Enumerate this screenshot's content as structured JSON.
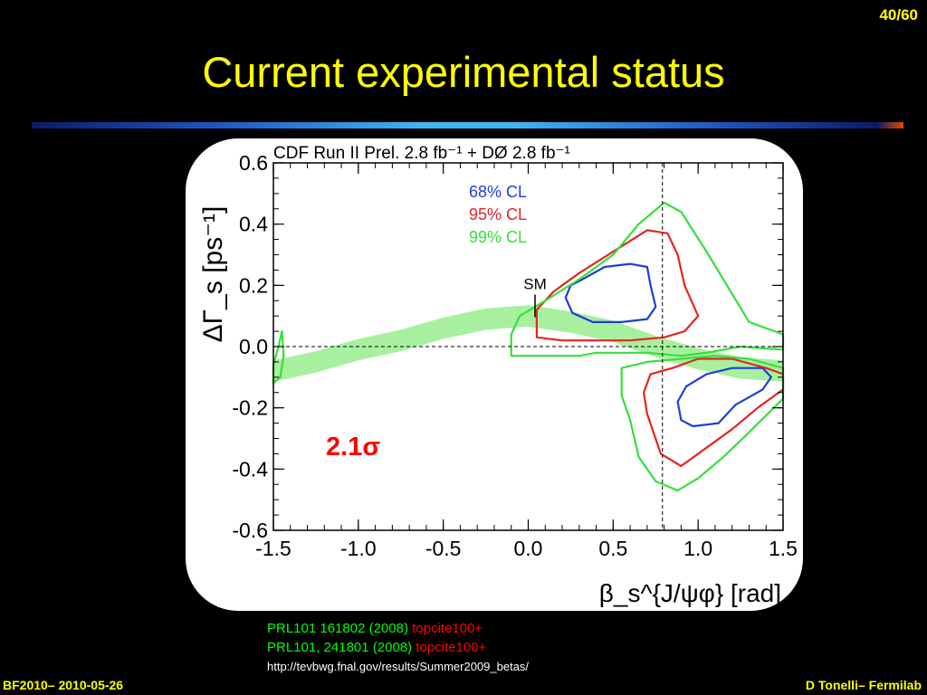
{
  "slide": {
    "page_number": "40/60",
    "title": "Current experimental status",
    "footer_left": "BF2010– 2010-05-26",
    "footer_right": "D Tonelli– Fermilab",
    "references": [
      {
        "text": "PRL101 161802 (2008) ",
        "cite": "topcite100+"
      },
      {
        "text": "PRL101, 241801 (2008) ",
        "cite": "topcite100+"
      }
    ],
    "url": "http://tevbwg.fnal.gov/results/Summer2009_betas/",
    "significance": "2.1σ"
  },
  "colors": {
    "title": "#ffff00",
    "blue": "#1d3fd6",
    "red": "#e42522",
    "green": "#36e03a",
    "band": "#a8f0a0",
    "annotation": "#ff0000"
  },
  "chart_data": {
    "type": "contour",
    "header": "CDF  Run II Prel. 2.8 fb⁻¹ + DØ  2.8 fb⁻¹",
    "xlabel": "β_s^{J/ψφ} [rad]",
    "ylabel": "ΔΓ_s [ps⁻¹]",
    "xlim": [
      -1.5,
      1.5
    ],
    "ylim": [
      -0.6,
      0.6
    ],
    "x_ticks": [
      "-1.5",
      "-1.0",
      "-0.5",
      "0.0",
      "0.5",
      "1.0",
      "1.5"
    ],
    "y_ticks": [
      "0.6",
      "0.4",
      "0.2",
      "0.0",
      "-0.2",
      "-0.4",
      "-0.6"
    ],
    "reference_lines": {
      "x": 0.79,
      "y": 0.0
    },
    "sm_label": "SM",
    "sm_point": [
      0.04,
      0.09
    ],
    "legend": [
      {
        "name": "68% CL",
        "color": "#1d3fd6"
      },
      {
        "name": "95% CL",
        "color": "#e42522"
      },
      {
        "name": "99% CL",
        "color": "#36e03a"
      }
    ],
    "contours": [
      {
        "level": "68% CL",
        "region": "upper",
        "points": [
          [
            0.25,
            0.2
          ],
          [
            0.32,
            0.22
          ],
          [
            0.45,
            0.26
          ],
          [
            0.6,
            0.27
          ],
          [
            0.7,
            0.26
          ],
          [
            0.72,
            0.2
          ],
          [
            0.75,
            0.13
          ],
          [
            0.7,
            0.09
          ],
          [
            0.55,
            0.08
          ],
          [
            0.38,
            0.08
          ],
          [
            0.26,
            0.11
          ],
          [
            0.22,
            0.16
          ]
        ]
      },
      {
        "level": "68% CL",
        "region": "lower",
        "points": [
          [
            0.93,
            -0.13
          ],
          [
            1.05,
            -0.09
          ],
          [
            1.2,
            -0.07
          ],
          [
            1.38,
            -0.07
          ],
          [
            1.43,
            -0.1
          ],
          [
            1.38,
            -0.14
          ],
          [
            1.22,
            -0.19
          ],
          [
            1.12,
            -0.25
          ],
          [
            0.97,
            -0.26
          ],
          [
            0.9,
            -0.24
          ],
          [
            0.88,
            -0.18
          ]
        ]
      },
      {
        "level": "95% CL",
        "region": "upper",
        "points": [
          [
            0.05,
            0.12
          ],
          [
            0.15,
            0.18
          ],
          [
            0.3,
            0.24
          ],
          [
            0.5,
            0.31
          ],
          [
            0.7,
            0.38
          ],
          [
            0.82,
            0.37
          ],
          [
            0.88,
            0.3
          ],
          [
            0.92,
            0.2
          ],
          [
            1.0,
            0.1
          ],
          [
            0.92,
            0.05
          ],
          [
            0.8,
            0.03
          ],
          [
            0.6,
            0.02
          ],
          [
            0.4,
            0.02
          ],
          [
            0.2,
            0.02
          ],
          [
            0.05,
            0.03
          ]
        ]
      },
      {
        "level": "95% CL",
        "region": "lower",
        "points": [
          [
            0.72,
            -0.09
          ],
          [
            0.85,
            -0.07
          ],
          [
            1.0,
            -0.04
          ],
          [
            1.2,
            -0.04
          ],
          [
            1.4,
            -0.07
          ],
          [
            1.5,
            -0.09
          ],
          [
            1.5,
            -0.14
          ],
          [
            1.35,
            -0.2
          ],
          [
            1.2,
            -0.27
          ],
          [
            1.05,
            -0.33
          ],
          [
            0.9,
            -0.39
          ],
          [
            0.78,
            -0.35
          ],
          [
            0.7,
            -0.22
          ],
          [
            0.68,
            -0.15
          ]
        ]
      },
      {
        "level": "99% CL",
        "region": "upper",
        "points": [
          [
            -0.1,
            0.04
          ],
          [
            -0.05,
            0.1
          ],
          [
            0.1,
            0.15
          ],
          [
            0.3,
            0.22
          ],
          [
            0.5,
            0.3
          ],
          [
            0.65,
            0.4
          ],
          [
            0.8,
            0.47
          ],
          [
            0.9,
            0.44
          ],
          [
            1.05,
            0.31
          ],
          [
            1.3,
            0.08
          ],
          [
            1.5,
            0.04
          ],
          [
            1.5,
            -0.01
          ],
          [
            1.25,
            0.0
          ],
          [
            1.05,
            -0.02
          ],
          [
            0.9,
            -0.03
          ],
          [
            0.7,
            -0.02
          ],
          [
            0.55,
            -0.02
          ],
          [
            0.4,
            -0.02
          ],
          [
            0.3,
            -0.03
          ],
          [
            0.2,
            -0.03
          ],
          [
            -0.1,
            -0.03
          ]
        ]
      },
      {
        "level": "99% CL",
        "region": "lower",
        "points": [
          [
            0.55,
            -0.07
          ],
          [
            0.7,
            -0.05
          ],
          [
            0.9,
            -0.04
          ],
          [
            1.1,
            -0.03
          ],
          [
            1.3,
            -0.04
          ],
          [
            1.5,
            -0.07
          ],
          [
            1.5,
            -0.17
          ],
          [
            1.3,
            -0.28
          ],
          [
            1.15,
            -0.36
          ],
          [
            1.0,
            -0.43
          ],
          [
            0.88,
            -0.47
          ],
          [
            0.75,
            -0.44
          ],
          [
            0.65,
            -0.36
          ],
          [
            0.6,
            -0.24
          ],
          [
            0.55,
            -0.16
          ]
        ]
      },
      {
        "level": "99% CL",
        "region": "left",
        "points": [
          [
            -1.5,
            -0.06
          ],
          [
            -1.47,
            -0.0
          ],
          [
            -1.45,
            0.05
          ],
          [
            -1.44,
            -0.03
          ],
          [
            -1.46,
            -0.1
          ],
          [
            -1.5,
            -0.12
          ]
        ]
      }
    ],
    "sm_band_center": [
      [
        -1.5,
        -0.08
      ],
      [
        -1.25,
        -0.05
      ],
      [
        -1.0,
        -0.01
      ],
      [
        -0.75,
        0.02
      ],
      [
        -0.5,
        0.06
      ],
      [
        -0.25,
        0.09
      ],
      [
        0.0,
        0.1
      ],
      [
        0.25,
        0.08
      ],
      [
        0.5,
        0.05
      ],
      [
        0.75,
        0.0
      ],
      [
        1.0,
        -0.04
      ],
      [
        1.25,
        -0.07
      ],
      [
        1.5,
        -0.08
      ]
    ],
    "sm_band_half_width": 0.035
  }
}
